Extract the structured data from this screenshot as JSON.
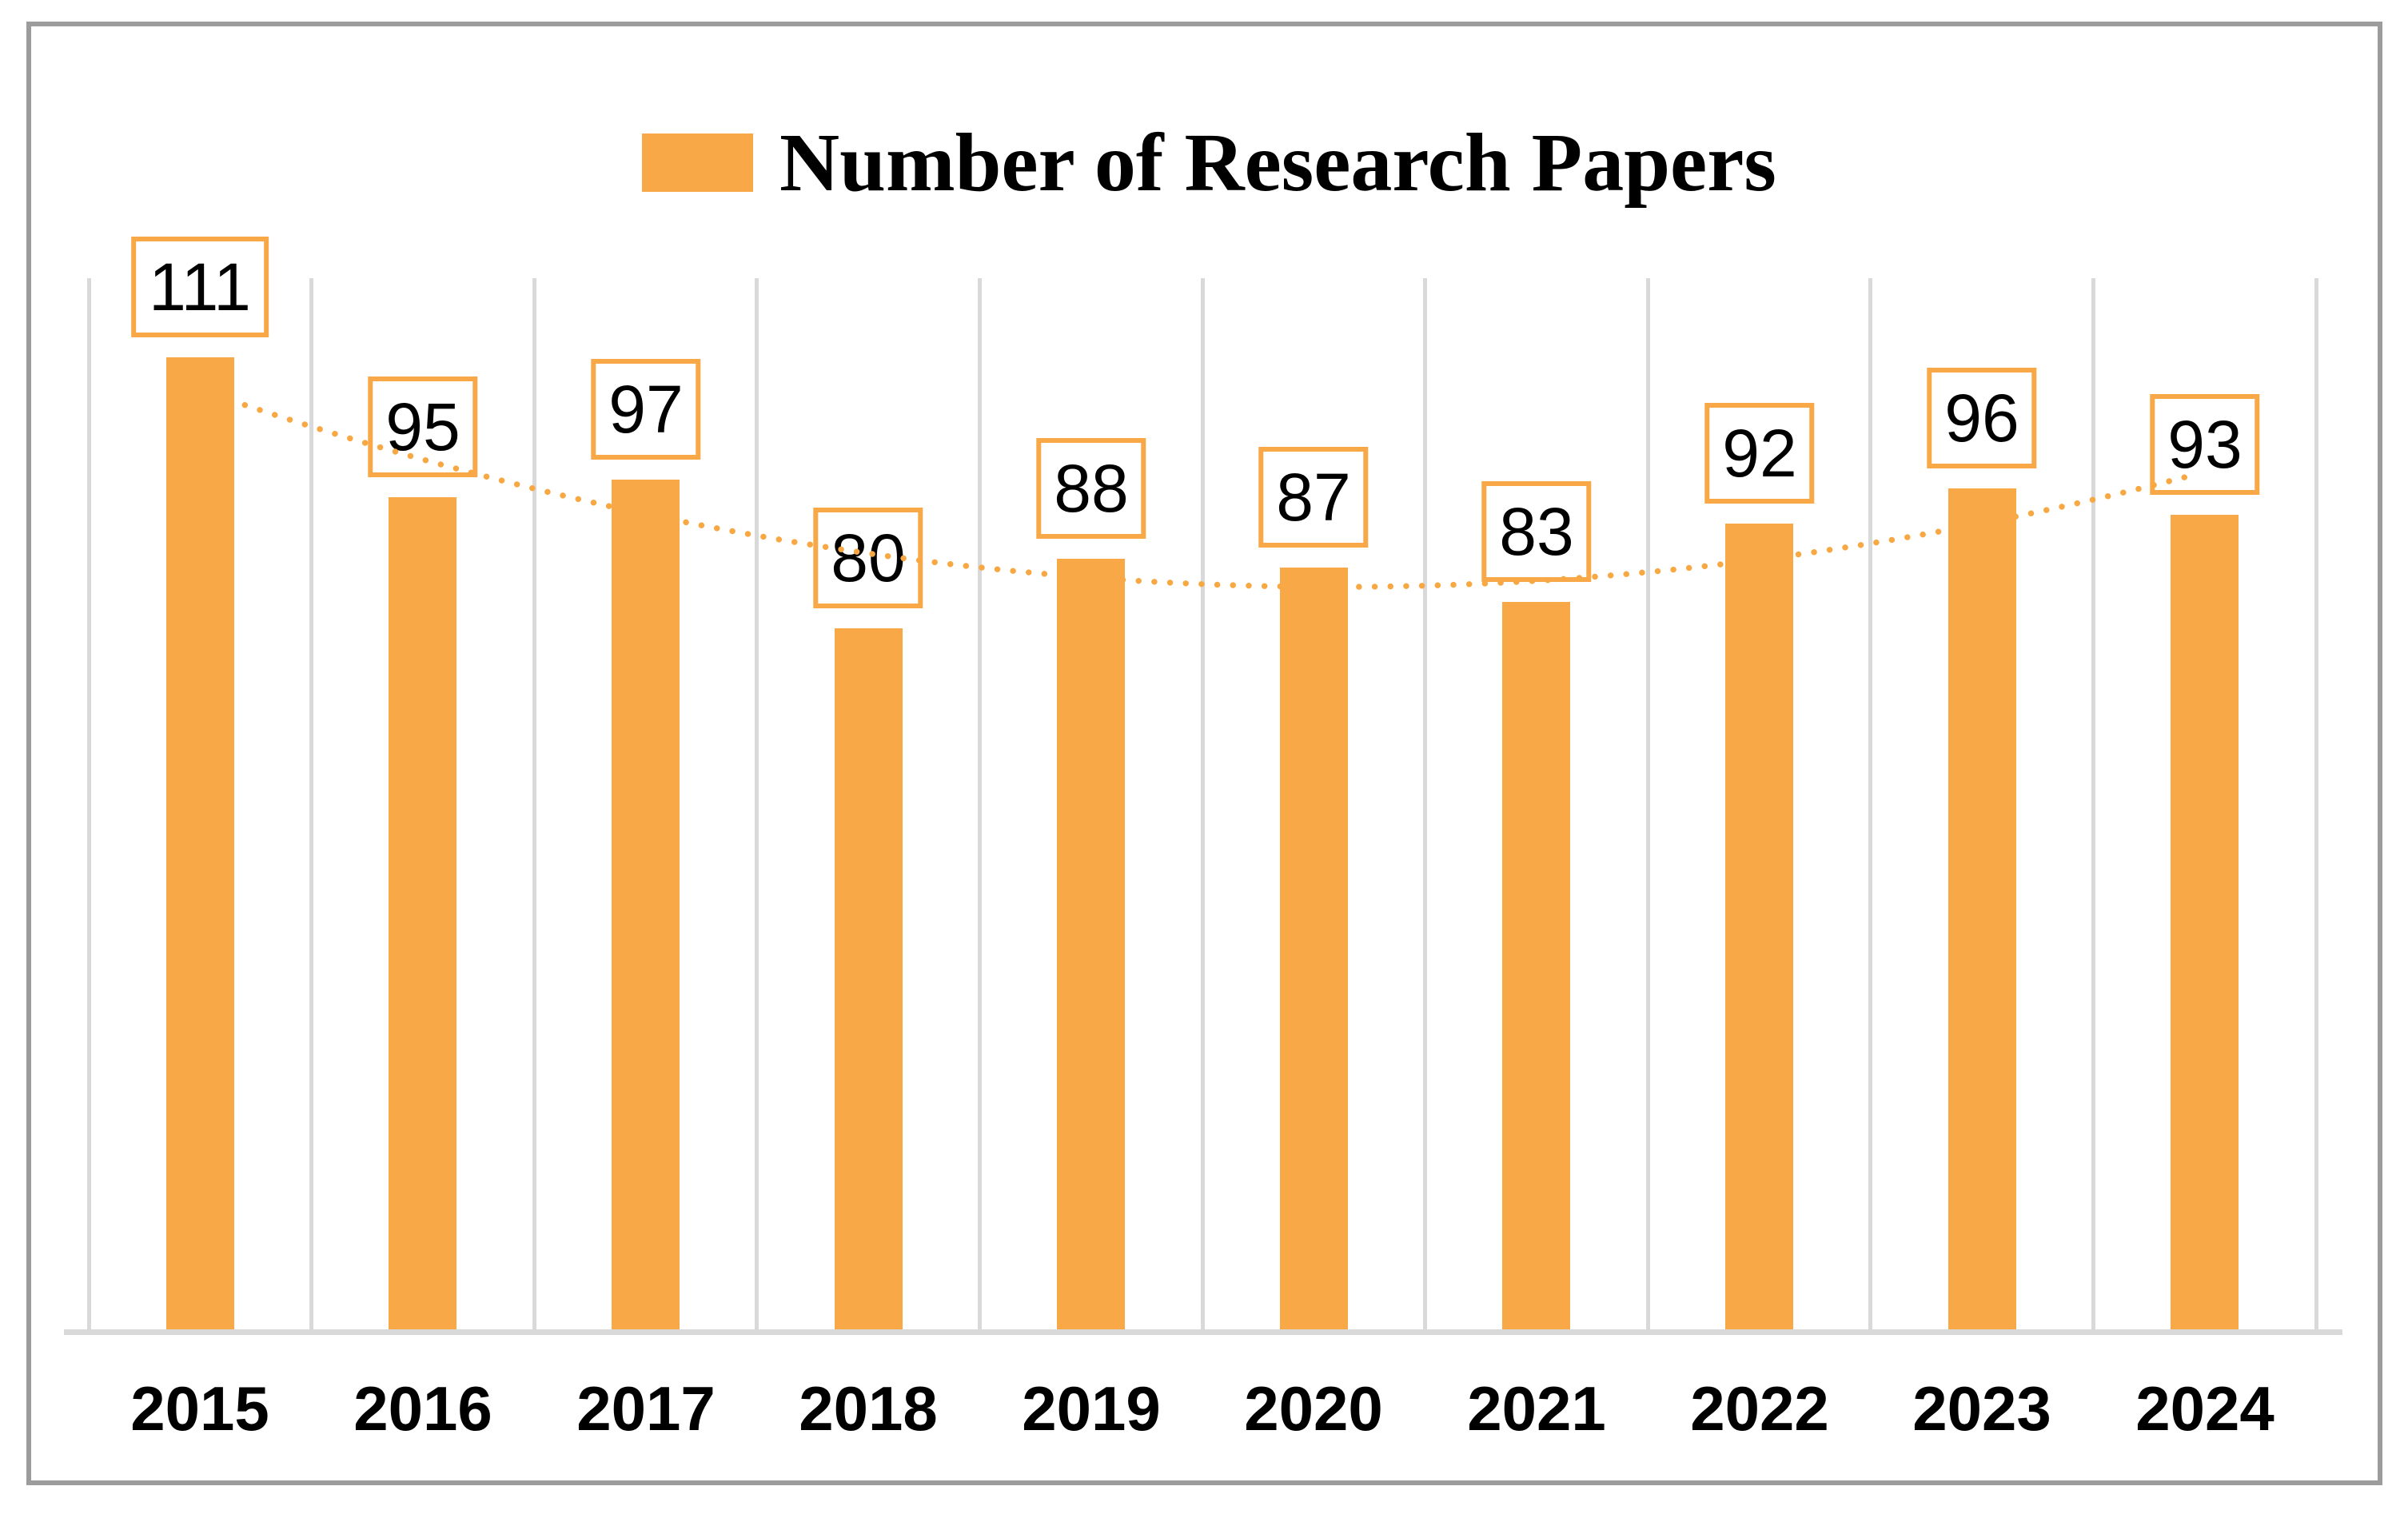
{
  "legend": {
    "label": "Number of Research Papers"
  },
  "chart_data": {
    "type": "bar",
    "title": "Number of Research Papers",
    "categories": [
      "2015",
      "2016",
      "2017",
      "2018",
      "2019",
      "2020",
      "2021",
      "2022",
      "2023",
      "2024"
    ],
    "values": [
      111,
      95,
      97,
      80,
      88,
      87,
      83,
      92,
      96,
      93
    ],
    "data_labels": [
      "111",
      "95",
      "97",
      "80",
      "88",
      "87",
      "83",
      "92",
      "96",
      "93"
    ],
    "xlabel": "",
    "ylabel": "",
    "ylim": [
      0,
      120
    ],
    "y_axis_visible": false,
    "grid": "vertical-category-separators",
    "legend_position": "top-center",
    "data_label_style": "boxed-above-bar",
    "trendline": {
      "type": "polynomial",
      "order": 2,
      "style": "dotted"
    },
    "colors": {
      "bar": "#F9A847",
      "data_label_box_border": "#F9A847",
      "data_label_text": "#000000",
      "trendline": "#F8A843",
      "gridline": "#D9D9D9",
      "axis_line": "#D9D9D9",
      "frame_border": "#9C9C9C",
      "text": "#000000",
      "background": "#FFFFFF"
    }
  }
}
